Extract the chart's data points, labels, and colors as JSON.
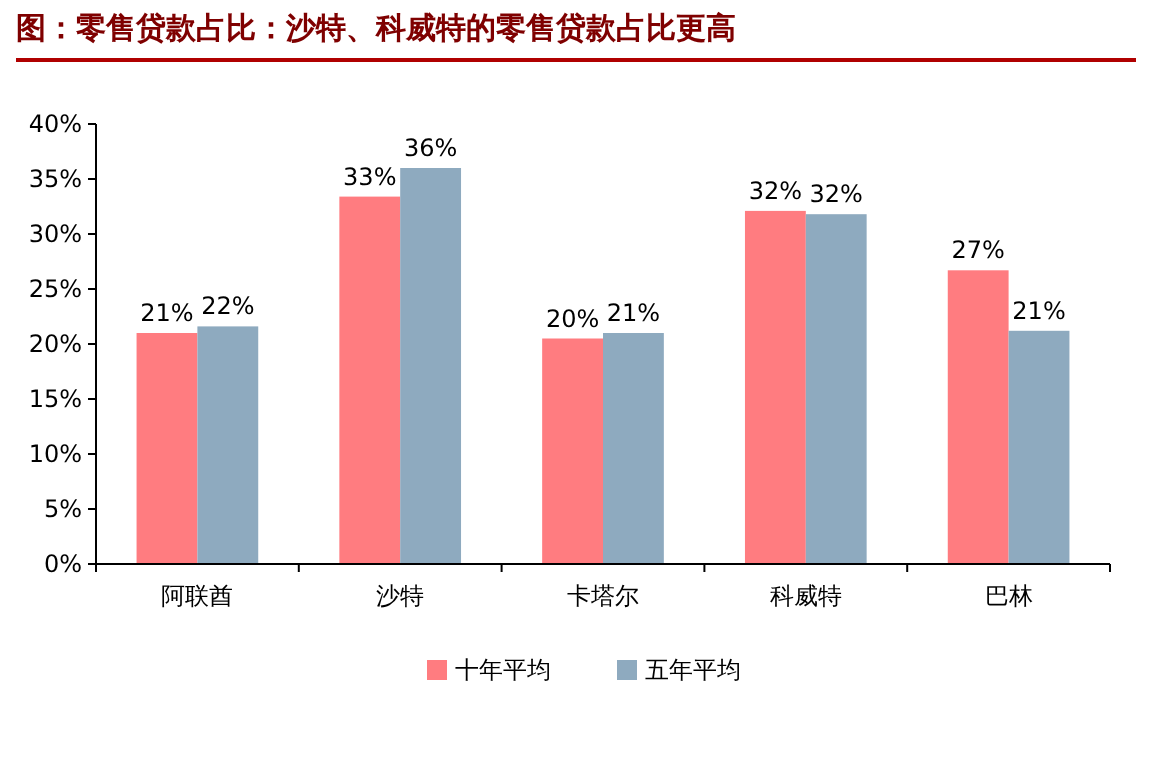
{
  "chart_data": {
    "type": "bar",
    "title": "图：零售贷款占比：沙特、科威特的零售贷款占比更高",
    "categories": [
      "阿联酋",
      "沙特",
      "卡塔尔",
      "科威特",
      "巴林"
    ],
    "series": [
      {
        "name": "十年平均",
        "color": "#ff7c80",
        "values": [
          21.0,
          33.4,
          20.5,
          32.1,
          26.7
        ],
        "value_labels": [
          "21%",
          "33%",
          "20%",
          "32%",
          "27%"
        ]
      },
      {
        "name": "五年平均",
        "color": "#8eaabf",
        "values": [
          21.6,
          36.0,
          21.0,
          31.8,
          21.2
        ],
        "value_labels": [
          "22%",
          "36%",
          "21%",
          "32%",
          "21%"
        ]
      }
    ],
    "ylim": [
      0,
      40
    ],
    "yticks": [
      {
        "value": 0,
        "label": "0%"
      },
      {
        "value": 5,
        "label": "5%"
      },
      {
        "value": 10,
        "label": "10%"
      },
      {
        "value": 15,
        "label": "15%"
      },
      {
        "value": 20,
        "label": "20%"
      },
      {
        "value": 25,
        "label": "25%"
      },
      {
        "value": 30,
        "label": "30%"
      },
      {
        "value": 35,
        "label": "35%"
      },
      {
        "value": 40,
        "label": "40%"
      }
    ],
    "grid": false,
    "legend": "bottom"
  }
}
